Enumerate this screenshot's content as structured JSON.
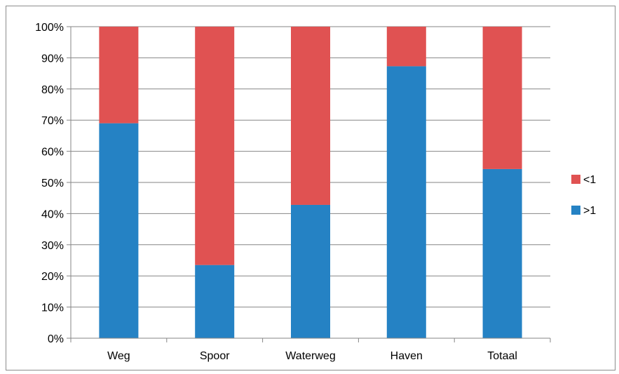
{
  "chart_data": {
    "type": "bar",
    "stacked": true,
    "categories": [
      "Weg",
      "Spoor",
      "Waterweg",
      "Haven",
      "Totaal"
    ],
    "series": [
      {
        "name": ">1",
        "color": "#2582c4",
        "values": [
          69,
          23.5,
          42.8,
          87.3,
          54.3
        ]
      },
      {
        "name": "<1",
        "color": "#e05252",
        "values": [
          31,
          76.5,
          57.2,
          12.7,
          45.7
        ]
      }
    ],
    "yticks": [
      "0%",
      "10%",
      "20%",
      "30%",
      "40%",
      "50%",
      "60%",
      "70%",
      "80%",
      "90%",
      "100%"
    ],
    "ylim": [
      0,
      100
    ],
    "grid": true,
    "legend_position": "right"
  }
}
